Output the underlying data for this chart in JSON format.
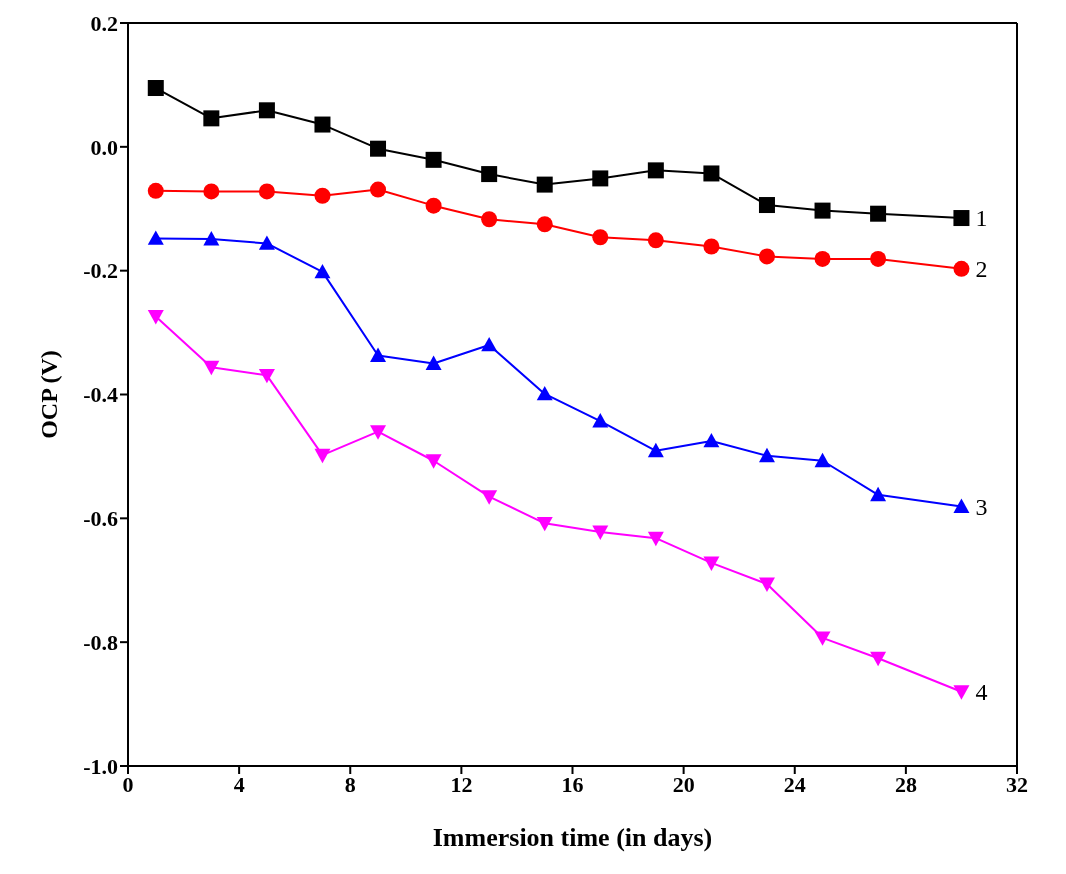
{
  "chart_data": {
    "type": "line",
    "xlabel": "Immersion time (in days)",
    "ylabel": "OCP (V)",
    "x": [
      1,
      3,
      5,
      7,
      9,
      11,
      13,
      15,
      17,
      19,
      21,
      23,
      25,
      27,
      30
    ],
    "xlim": [
      0,
      32
    ],
    "xticks": [
      0,
      4,
      8,
      12,
      16,
      20,
      24,
      28,
      32
    ],
    "ylim": [
      -1.0,
      0.2
    ],
    "yticks": [
      {
        "value": -1.0,
        "label": "-1.0"
      },
      -0.8,
      -0.6,
      -0.4,
      -0.2,
      {
        "value": 0,
        "label": "0.0"
      },
      0.2
    ],
    "grid": false,
    "legend": false,
    "line_style": "solid",
    "series": [
      {
        "name": "1",
        "color": "#000000",
        "marker": "square",
        "values": [
          0.095,
          0.046,
          0.059,
          0.036,
          -0.003,
          -0.021,
          -0.044,
          -0.061,
          -0.051,
          -0.038,
          -0.043,
          -0.094,
          -0.103,
          -0.108,
          -0.115
        ]
      },
      {
        "name": "2",
        "color": "#ff0000",
        "marker": "circle",
        "values": [
          -0.071,
          -0.072,
          -0.072,
          -0.079,
          -0.069,
          -0.095,
          -0.117,
          -0.125,
          -0.146,
          -0.151,
          -0.161,
          -0.177,
          -0.181,
          -0.181,
          -0.197
        ]
      },
      {
        "name": "3",
        "color": "#0000ff",
        "marker": "triangle",
        "values": [
          -0.148,
          -0.149,
          -0.156,
          -0.202,
          -0.337,
          -0.35,
          -0.32,
          -0.399,
          -0.443,
          -0.491,
          -0.475,
          -0.499,
          -0.507,
          -0.562,
          -0.581
        ]
      },
      {
        "name": "4",
        "color": "#ff00ff",
        "marker": "triangle-down",
        "values": [
          -0.274,
          -0.356,
          -0.369,
          -0.498,
          -0.46,
          -0.507,
          -0.565,
          -0.608,
          -0.622,
          -0.632,
          -0.672,
          -0.706,
          -0.793,
          -0.826,
          -0.88
        ]
      }
    ]
  }
}
